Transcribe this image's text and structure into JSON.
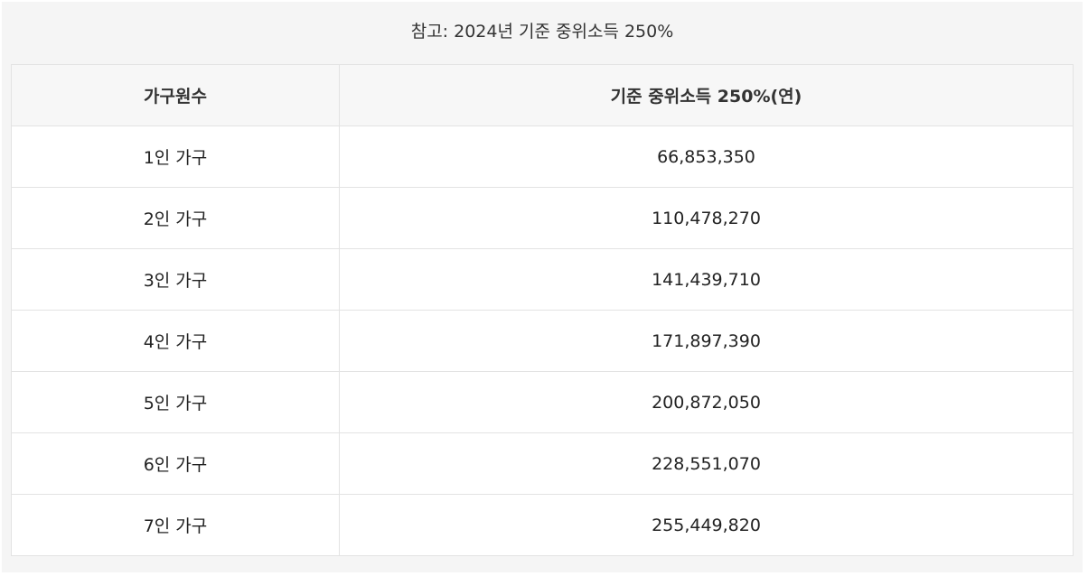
{
  "caption": "참고: 2024년 기준 중위소득 250%",
  "table": {
    "headers": [
      "가구원수",
      "기준 중위소득 250%(연)"
    ],
    "rows": [
      [
        "1인 가구",
        "66,853,350"
      ],
      [
        "2인 가구",
        "110,478,270"
      ],
      [
        "3인 가구",
        "141,439,710"
      ],
      [
        "4인 가구",
        "171,897,390"
      ],
      [
        "5인 가구",
        "200,872,050"
      ],
      [
        "6인 가구",
        "228,551,070"
      ],
      [
        "7인 가구",
        "255,449,820"
      ]
    ]
  }
}
